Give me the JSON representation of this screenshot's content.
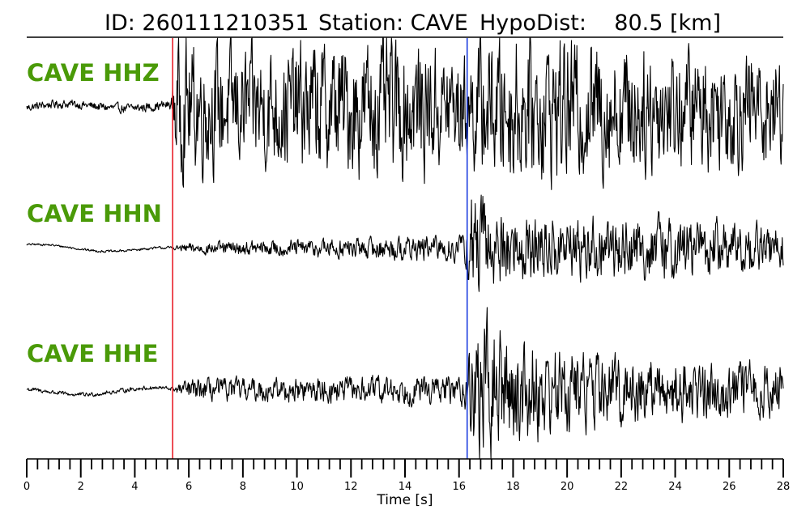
{
  "chart_data": {
    "type": "line",
    "title": {
      "id": "ID: 260111210351",
      "station": "Station: CAVE",
      "hypodist": "HypoDist:    80.5 [km]"
    },
    "xlabel": "Time [s]",
    "xlim": [
      0,
      28
    ],
    "x_ticks": [
      0,
      2,
      4,
      6,
      8,
      10,
      12,
      14,
      16,
      18,
      20,
      22,
      24,
      26,
      28
    ],
    "minor_tick_step": 0.4,
    "grid": false,
    "label_color": "#4a9a08",
    "trace_color": "#000000",
    "picks": [
      {
        "phase": "P",
        "time": 5.4,
        "color": "#e8202a"
      },
      {
        "phase": "S",
        "time": 16.3,
        "color": "#1f3fe0"
      }
    ],
    "series": [
      {
        "name": "CAVE HHZ",
        "description": "vertical component; low-amplitude noise before P, strong coda after P onset with further increase after S",
        "envelope": [
          {
            "t": 0,
            "amp": 0.06
          },
          {
            "t": 5.35,
            "amp": 0.07
          },
          {
            "t": 5.5,
            "amp": 0.95
          },
          {
            "t": 8,
            "amp": 0.85
          },
          {
            "t": 14,
            "amp": 1.0
          },
          {
            "t": 16.2,
            "amp": 0.75
          },
          {
            "t": 17,
            "amp": 1.05
          },
          {
            "t": 20,
            "amp": 1.0
          },
          {
            "t": 25,
            "amp": 0.85
          },
          {
            "t": 28,
            "amp": 0.8
          }
        ]
      },
      {
        "name": "CAVE HHN",
        "description": "north component; tiny P coda, large S arrival near 16.5 s then decaying oscillation",
        "envelope": [
          {
            "t": 0,
            "amp": 0.015
          },
          {
            "t": 5.4,
            "amp": 0.02
          },
          {
            "t": 6,
            "amp": 0.08
          },
          {
            "t": 16.2,
            "amp": 0.2
          },
          {
            "t": 16.5,
            "amp": 1.0
          },
          {
            "t": 17.2,
            "amp": 0.55
          },
          {
            "t": 20,
            "amp": 0.45
          },
          {
            "t": 25,
            "amp": 0.45
          },
          {
            "t": 28,
            "amp": 0.3
          }
        ]
      },
      {
        "name": "CAVE HHE",
        "description": "east component; small P coda, very large S arrival near 16.6 s then decaying coda",
        "envelope": [
          {
            "t": 0,
            "amp": 0.03
          },
          {
            "t": 5.4,
            "amp": 0.03
          },
          {
            "t": 6,
            "amp": 0.15
          },
          {
            "t": 16.2,
            "amp": 0.2
          },
          {
            "t": 16.6,
            "amp": 1.0
          },
          {
            "t": 18,
            "amp": 0.75
          },
          {
            "t": 21,
            "amp": 0.5
          },
          {
            "t": 28,
            "amp": 0.35
          }
        ]
      }
    ]
  }
}
